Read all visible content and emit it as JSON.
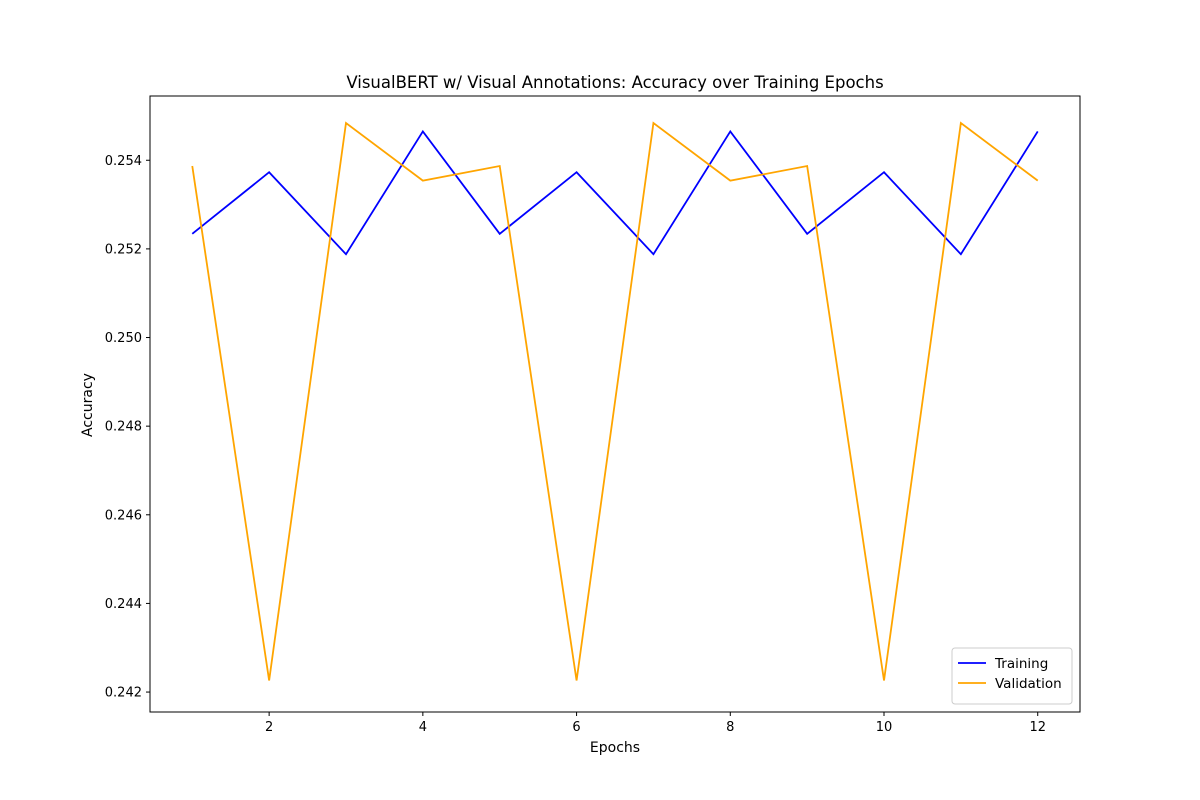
{
  "chart_data": {
    "type": "line",
    "title": "VisualBERT w/ Visual Annotations: Accuracy over Training Epochs",
    "xlabel": "Epochs",
    "ylabel": "Accuracy",
    "x": [
      1,
      2,
      3,
      4,
      5,
      6,
      7,
      8,
      9,
      10,
      11,
      12
    ],
    "xlim": [
      0.45,
      12.55
    ],
    "ylim": [
      0.24155,
      0.25545
    ],
    "xticks": [
      2,
      4,
      6,
      8,
      10,
      12
    ],
    "xtick_labels": [
      "2",
      "4",
      "6",
      "8",
      "10",
      "12"
    ],
    "yticks": [
      0.242,
      0.244,
      0.246,
      0.248,
      0.25,
      0.252,
      0.254
    ],
    "ytick_labels": [
      "0.242",
      "0.244",
      "0.246",
      "0.248",
      "0.250",
      "0.252",
      "0.254"
    ],
    "grid": false,
    "legend_position": "lower-right",
    "series": [
      {
        "name": "Training",
        "color": "#0000ff",
        "values": [
          0.25234,
          0.25373,
          0.25188,
          0.25465,
          0.25234,
          0.25373,
          0.25188,
          0.25465,
          0.25234,
          0.25373,
          0.25188,
          0.25465
        ]
      },
      {
        "name": "Validation",
        "color": "#ffa500",
        "values": [
          0.25387,
          0.24226,
          0.25484,
          0.25354,
          0.25387,
          0.24226,
          0.25484,
          0.25354,
          0.25387,
          0.24226,
          0.25484,
          0.25354
        ]
      }
    ]
  }
}
